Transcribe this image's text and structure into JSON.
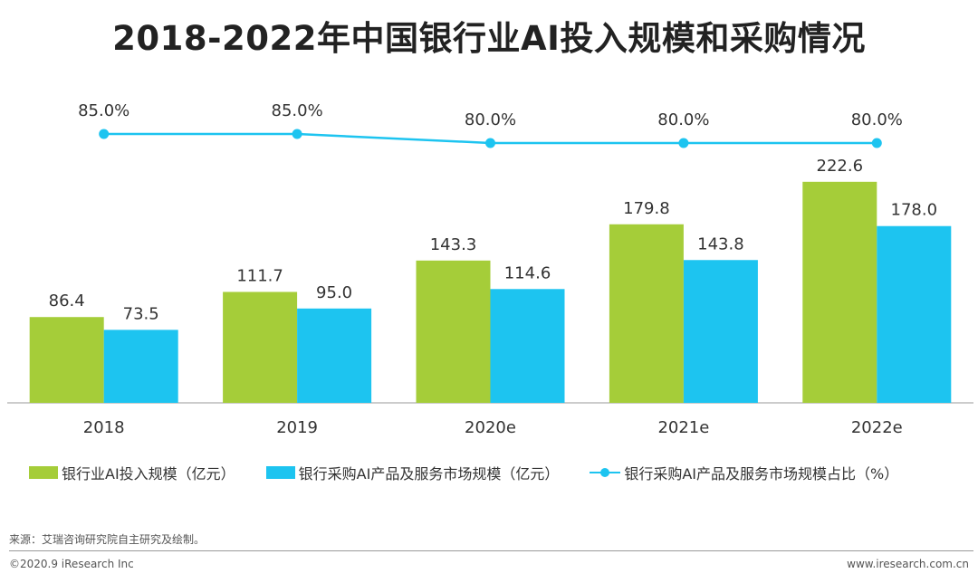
{
  "title": "2018-2022年中国银行业AI投入规模和采购情况",
  "chart_data": {
    "type": "bar",
    "categories": [
      "2018",
      "2019",
      "2020e",
      "2021e",
      "2022e"
    ],
    "series": [
      {
        "name": "银行业AI投入规模（亿元）",
        "values": [
          86.4,
          111.7,
          143.3,
          179.8,
          222.6
        ],
        "labels": [
          "86.4",
          "111.7",
          "143.3",
          "179.8",
          "222.6"
        ],
        "color": "#a5cd39"
      },
      {
        "name": "银行采购AI产品及服务市场规模（亿元）",
        "values": [
          73.5,
          95.0,
          114.6,
          143.8,
          178.0
        ],
        "labels": [
          "73.5",
          "95.0",
          "114.6",
          "143.8",
          "178.0"
        ],
        "color": "#1dc4f0"
      }
    ],
    "line_series": {
      "name": "银行采购AI产品及服务市场规模占比（%）",
      "values": [
        85.0,
        85.0,
        80.0,
        80.0,
        80.0
      ],
      "labels": [
        "85.0%",
        "85.0%",
        "80.0%",
        "80.0%",
        "80.0%"
      ],
      "color": "#1dc4f0"
    },
    "ylim": [
      0,
      260
    ],
    "line_ylim": [
      50,
      90
    ],
    "xlabel": "",
    "ylabel": "",
    "legend": "bottom"
  },
  "legend": {
    "item1": "银行业AI投入规模（亿元）",
    "item2": "银行采购AI产品及服务市场规模（亿元）",
    "item3": "银行采购AI产品及服务市场规模占比（%）"
  },
  "colors": {
    "green": "#a5cd39",
    "blue": "#1dc4f0"
  },
  "source": "来源：艾瑞咨询研究院自主研究及绘制。",
  "footer": {
    "copyright": "©2020.9 iResearch Inc",
    "website": "www.iresearch.com.cn"
  }
}
